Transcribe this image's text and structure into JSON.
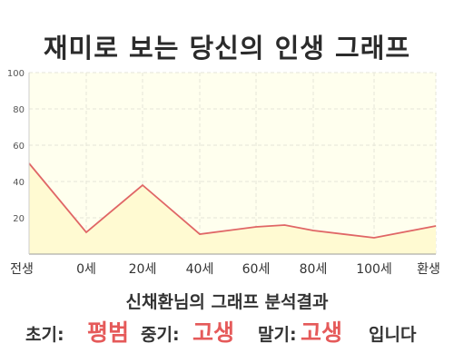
{
  "title": "재미로 보는 당신의 인생 그래프",
  "summary": {
    "heading": "신채환님의 그래프 분석결과",
    "early_label": "초기:",
    "early_value": "평범",
    "middle_label": "중기:",
    "middle_value": "고생",
    "late_label": "말기:",
    "late_value": "고생",
    "suffix": "입니다"
  },
  "chart_data": {
    "type": "area",
    "title": "재미로 보는 당신의 인생 그래프",
    "x_ticks": [
      "전생",
      "0세",
      "20세",
      "40세",
      "60세",
      "80세",
      "100세",
      "환생"
    ],
    "points": [
      {
        "x": "전생",
        "y": 50
      },
      {
        "x": "0세",
        "y": 12
      },
      {
        "x": "20세",
        "y": 38
      },
      {
        "x": "40세",
        "y": 11
      },
      {
        "x": "60세",
        "y": 15
      },
      {
        "x": "70세",
        "y": 16
      },
      {
        "x": "80세",
        "y": 13
      },
      {
        "x": "100세",
        "y": 9
      },
      {
        "x": "환생",
        "y": 15.5
      }
    ],
    "y_ticks": [
      20,
      40,
      60,
      80,
      100
    ],
    "ylim": [
      0,
      100
    ],
    "grid": true,
    "colors": {
      "line": "#e06666",
      "fill": "#fffad2",
      "bg": "#ffffee",
      "accent": "#e55a5a"
    }
  }
}
